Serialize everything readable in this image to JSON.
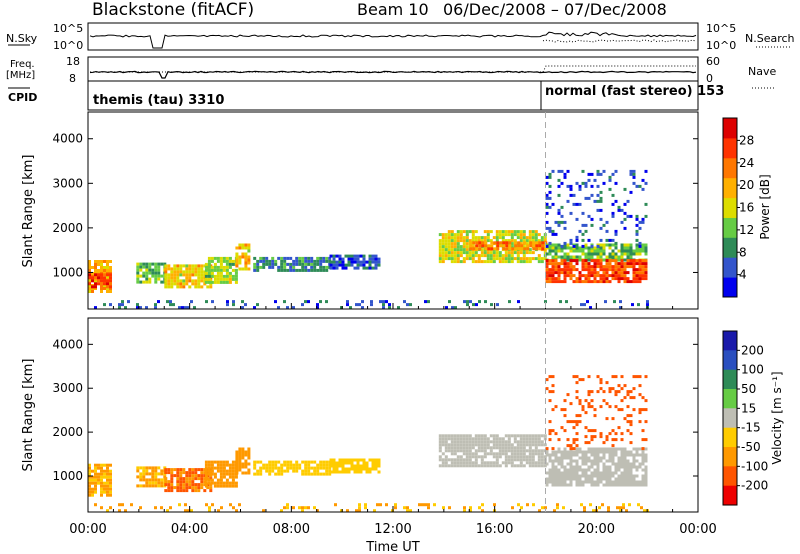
{
  "header": {
    "station": "Blackstone (fitACF)",
    "beam": "Beam 10",
    "dates": "06/Dec/2008 – 07/Dec/2008"
  },
  "top_panels": {
    "nsky_label": "N.Sky",
    "nsky_ticks": [
      "10^5",
      "10^0"
    ],
    "nsearch_label": "N.Search",
    "nsearch_ticks": [
      "10^5",
      "10^0"
    ],
    "freq_label": "Freq.",
    "freq_unit": "[MHz]",
    "freq_ticks": [
      "18",
      "8"
    ],
    "nave_label": "Nave",
    "nave_ticks": [
      "60",
      "0"
    ],
    "cpid_label": "CPID",
    "cpid_segments": [
      {
        "text": "themis (tau) 3310"
      },
      {
        "text": "normal (fast stereo) 153"
      }
    ]
  },
  "x_axis": {
    "label": "Time UT",
    "ticks": [
      "00:00",
      "04:00",
      "08:00",
      "12:00",
      "16:00",
      "20:00",
      "00:00"
    ],
    "tick_hours": [
      0,
      4,
      8,
      12,
      16,
      20,
      24
    ],
    "range_hours": [
      0,
      24
    ],
    "mode_change_hour": 18
  },
  "y_axis": {
    "label": "Slant Range [km]",
    "ticks": [
      "1000",
      "2000",
      "3000",
      "4000"
    ],
    "tick_values": [
      1000,
      2000,
      3000,
      4000
    ],
    "range_km": [
      180,
      4600
    ]
  },
  "colorbars": {
    "power": {
      "label": "Power [dB]",
      "ticks": [
        "4",
        "8",
        "12",
        "16",
        "20",
        "24",
        "28"
      ],
      "tick_values": [
        4,
        8,
        12,
        16,
        20,
        24,
        28
      ],
      "range": [
        0,
        32
      ],
      "colors": [
        "#0000ee",
        "#3355cc",
        "#2e8b57",
        "#66cc44",
        "#dddd00",
        "#ffb000",
        "#ff7700",
        "#ff3300",
        "#dd0000"
      ]
    },
    "velocity": {
      "label": "Velocity [m s⁻¹]",
      "ticks": [
        "200",
        "100",
        "50",
        "15",
        "-15",
        "-50",
        "-100",
        "-200"
      ],
      "tick_values": [
        200,
        100,
        50,
        15,
        -15,
        -50,
        -100,
        -200
      ],
      "colors": [
        "#1a1aaa",
        "#2a4fbf",
        "#2e8b57",
        "#66cc44",
        "#bebeb4",
        "#ffcc00",
        "#ff9900",
        "#ff5500",
        "#ee0000"
      ]
    }
  },
  "chart_data": [
    {
      "type": "heatmap",
      "name": "power",
      "x_unit": "hours UT",
      "y_unit": "km",
      "blobs": [
        {
          "x": [
            0.0,
            0.9
          ],
          "y": [
            560,
            1280
          ],
          "level": 20
        },
        {
          "x": [
            0.0,
            0.9
          ],
          "y": [
            700,
            980
          ],
          "level": 28
        },
        {
          "x": [
            1.9,
            3.0
          ],
          "y": [
            780,
            1220
          ],
          "level": 12
        },
        {
          "x": [
            3.0,
            4.8
          ],
          "y": [
            680,
            1180
          ],
          "level": 18
        },
        {
          "x": [
            4.6,
            5.8
          ],
          "y": [
            780,
            1350
          ],
          "level": 14
        },
        {
          "x": [
            5.8,
            6.3
          ],
          "y": [
            1100,
            1650
          ],
          "level": 18
        },
        {
          "x": [
            6.5,
            9.5
          ],
          "y": [
            1050,
            1350
          ],
          "level": 8
        },
        {
          "x": [
            9.5,
            11.5
          ],
          "y": [
            1100,
            1400
          ],
          "level": 6
        },
        {
          "x": [
            13.8,
            18.0
          ],
          "y": [
            1250,
            1950
          ],
          "level": 16
        },
        {
          "x": [
            15.0,
            18.0
          ],
          "y": [
            1500,
            1700
          ],
          "level": 22
        },
        {
          "x": [
            18.0,
            22.0
          ],
          "y": [
            1250,
            1650
          ],
          "level": 12
        },
        {
          "x": [
            18.0,
            22.0
          ],
          "y": [
            800,
            1300
          ],
          "level": 26
        },
        {
          "x": [
            0.0,
            22.5
          ],
          "y": [
            200,
            380
          ],
          "level": 6
        },
        {
          "x": [
            18.0,
            22.0
          ],
          "y": [
            1600,
            3300
          ],
          "level": 5
        }
      ]
    },
    {
      "type": "heatmap",
      "name": "velocity",
      "x_unit": "hours UT",
      "y_unit": "km",
      "blobs": [
        {
          "x": [
            0.0,
            0.9
          ],
          "y": [
            560,
            1280
          ],
          "v": -50
        },
        {
          "x": [
            1.9,
            3.0
          ],
          "y": [
            780,
            1220
          ],
          "v": -50
        },
        {
          "x": [
            3.0,
            4.8
          ],
          "y": [
            680,
            1180
          ],
          "v": -100
        },
        {
          "x": [
            4.6,
            5.8
          ],
          "y": [
            780,
            1350
          ],
          "v": -70
        },
        {
          "x": [
            5.8,
            6.3
          ],
          "y": [
            1100,
            1650
          ],
          "v": -60
        },
        {
          "x": [
            6.5,
            9.5
          ],
          "y": [
            1050,
            1350
          ],
          "v": -40
        },
        {
          "x": [
            9.5,
            11.5
          ],
          "y": [
            1100,
            1400
          ],
          "v": -40
        },
        {
          "x": [
            13.8,
            18.0
          ],
          "y": [
            1250,
            1950
          ],
          "v": 0
        },
        {
          "x": [
            18.0,
            22.0
          ],
          "y": [
            800,
            1650
          ],
          "v": 0
        },
        {
          "x": [
            0.0,
            22.5
          ],
          "y": [
            200,
            380
          ],
          "v": -50
        },
        {
          "x": [
            18.0,
            22.0
          ],
          "y": [
            1600,
            3300
          ],
          "v": -120
        }
      ]
    }
  ]
}
